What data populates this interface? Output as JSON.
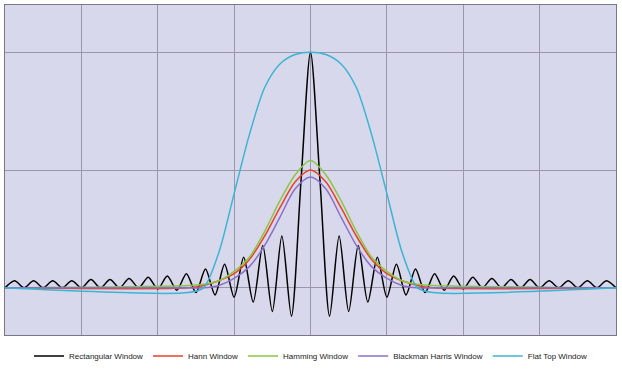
{
  "chart_data": {
    "type": "line",
    "series": [
      {
        "name": "Rectangular Window",
        "color": "#000000",
        "x": [
          -4,
          -3.875,
          -3.75,
          -3.625,
          -3.5,
          -3.375,
          -3.25,
          -3.125,
          -3,
          -2.875,
          -2.75,
          -2.625,
          -2.5,
          -2.375,
          -2.25,
          -2.125,
          -2,
          -1.875,
          -1.75,
          -1.625,
          -1.5,
          -1.375,
          -1.25,
          -1.125,
          -1,
          -0.875,
          -0.75,
          -0.625,
          -0.5,
          -0.375,
          -0.25,
          -0.125,
          0,
          0.125,
          0.25,
          0.375,
          0.5,
          0.625,
          0.75,
          0.875,
          1,
          1.125,
          1.25,
          1.375,
          1.5,
          1.625,
          1.75,
          1.875,
          2,
          2.125,
          2.25,
          2.375,
          2.5,
          2.625,
          2.75,
          2.875,
          3,
          3.125,
          3.25,
          3.375,
          3.5,
          3.625,
          3.75,
          3.875,
          4
        ],
        "values": [
          0,
          0.03,
          0,
          0.03,
          0,
          0.03,
          0,
          0.03,
          0,
          0.035,
          0,
          0.035,
          0,
          0.04,
          0,
          0.045,
          -0.005,
          0.05,
          -0.01,
          0.06,
          -0.02,
          0.08,
          -0.03,
          0.1,
          -0.04,
          0.13,
          -0.06,
          0.18,
          -0.1,
          0.22,
          -0.12,
          0.45,
          1.0,
          0.45,
          -0.12,
          0.22,
          -0.1,
          0.18,
          -0.06,
          0.13,
          -0.04,
          0.1,
          -0.03,
          0.08,
          -0.02,
          0.06,
          -0.01,
          0.05,
          -0.005,
          0.045,
          0,
          0.04,
          0,
          0.035,
          0,
          0.035,
          0,
          0.03,
          0,
          0.03,
          0,
          0.03,
          0,
          0.03,
          0
        ]
      },
      {
        "name": "Hann Window",
        "color": "#e8402a",
        "x": [
          -4,
          -1.6,
          -1.4,
          -1.2,
          -1.0,
          -0.8,
          -0.6,
          -0.4,
          -0.2,
          0,
          0.2,
          0.4,
          0.6,
          0.8,
          1.0,
          1.2,
          1.4,
          1.6,
          4
        ],
        "values": [
          0,
          0,
          0.01,
          0.03,
          0.06,
          0.12,
          0.22,
          0.34,
          0.45,
          0.5,
          0.45,
          0.34,
          0.22,
          0.12,
          0.06,
          0.03,
          0.01,
          0,
          0
        ]
      },
      {
        "name": "Hamming Window",
        "color": "#8cc63e",
        "x": [
          -4,
          -1.6,
          -1.4,
          -1.2,
          -1.0,
          -0.8,
          -0.6,
          -0.4,
          -0.2,
          0,
          0.2,
          0.4,
          0.6,
          0.8,
          1.0,
          1.2,
          1.4,
          1.6,
          4
        ],
        "values": [
          0,
          0.01,
          0.015,
          0.03,
          0.07,
          0.13,
          0.24,
          0.37,
          0.48,
          0.54,
          0.48,
          0.37,
          0.24,
          0.13,
          0.07,
          0.03,
          0.015,
          0.01,
          0
        ]
      },
      {
        "name": "Blackman Harris Window",
        "color": "#8a6fc8",
        "x": [
          -4,
          -1.6,
          -1.4,
          -1.2,
          -1.0,
          -0.8,
          -0.6,
          -0.4,
          -0.2,
          0,
          0.2,
          0.4,
          0.6,
          0.8,
          1.0,
          1.2,
          1.4,
          1.6,
          4
        ],
        "values": [
          0,
          0,
          0,
          0.01,
          0.04,
          0.09,
          0.18,
          0.3,
          0.42,
          0.47,
          0.42,
          0.3,
          0.18,
          0.09,
          0.04,
          0.01,
          0,
          0,
          0
        ]
      },
      {
        "name": "Flat Top Window",
        "color": "#3cb4d2",
        "x": [
          -4,
          -1.6,
          -1.4,
          -1.2,
          -1.0,
          -0.8,
          -0.6,
          -0.4,
          -0.2,
          0,
          0.2,
          0.4,
          0.6,
          0.8,
          1.0,
          1.2,
          1.4,
          1.6,
          4
        ],
        "values": [
          0,
          -0.02,
          0,
          0.15,
          0.4,
          0.65,
          0.85,
          0.95,
          0.99,
          1.0,
          0.99,
          0.95,
          0.85,
          0.65,
          0.4,
          0.15,
          0,
          -0.02,
          0
        ]
      }
    ],
    "xlim": [
      -4,
      4
    ],
    "xticks": [
      -3,
      -2,
      -1,
      0,
      1,
      2,
      3
    ],
    "ylim": [
      -0.2,
      1.2
    ],
    "yticks": [
      0,
      0.5,
      1.0
    ],
    "grid": true,
    "legend": "bottom",
    "tick_labels": false
  }
}
